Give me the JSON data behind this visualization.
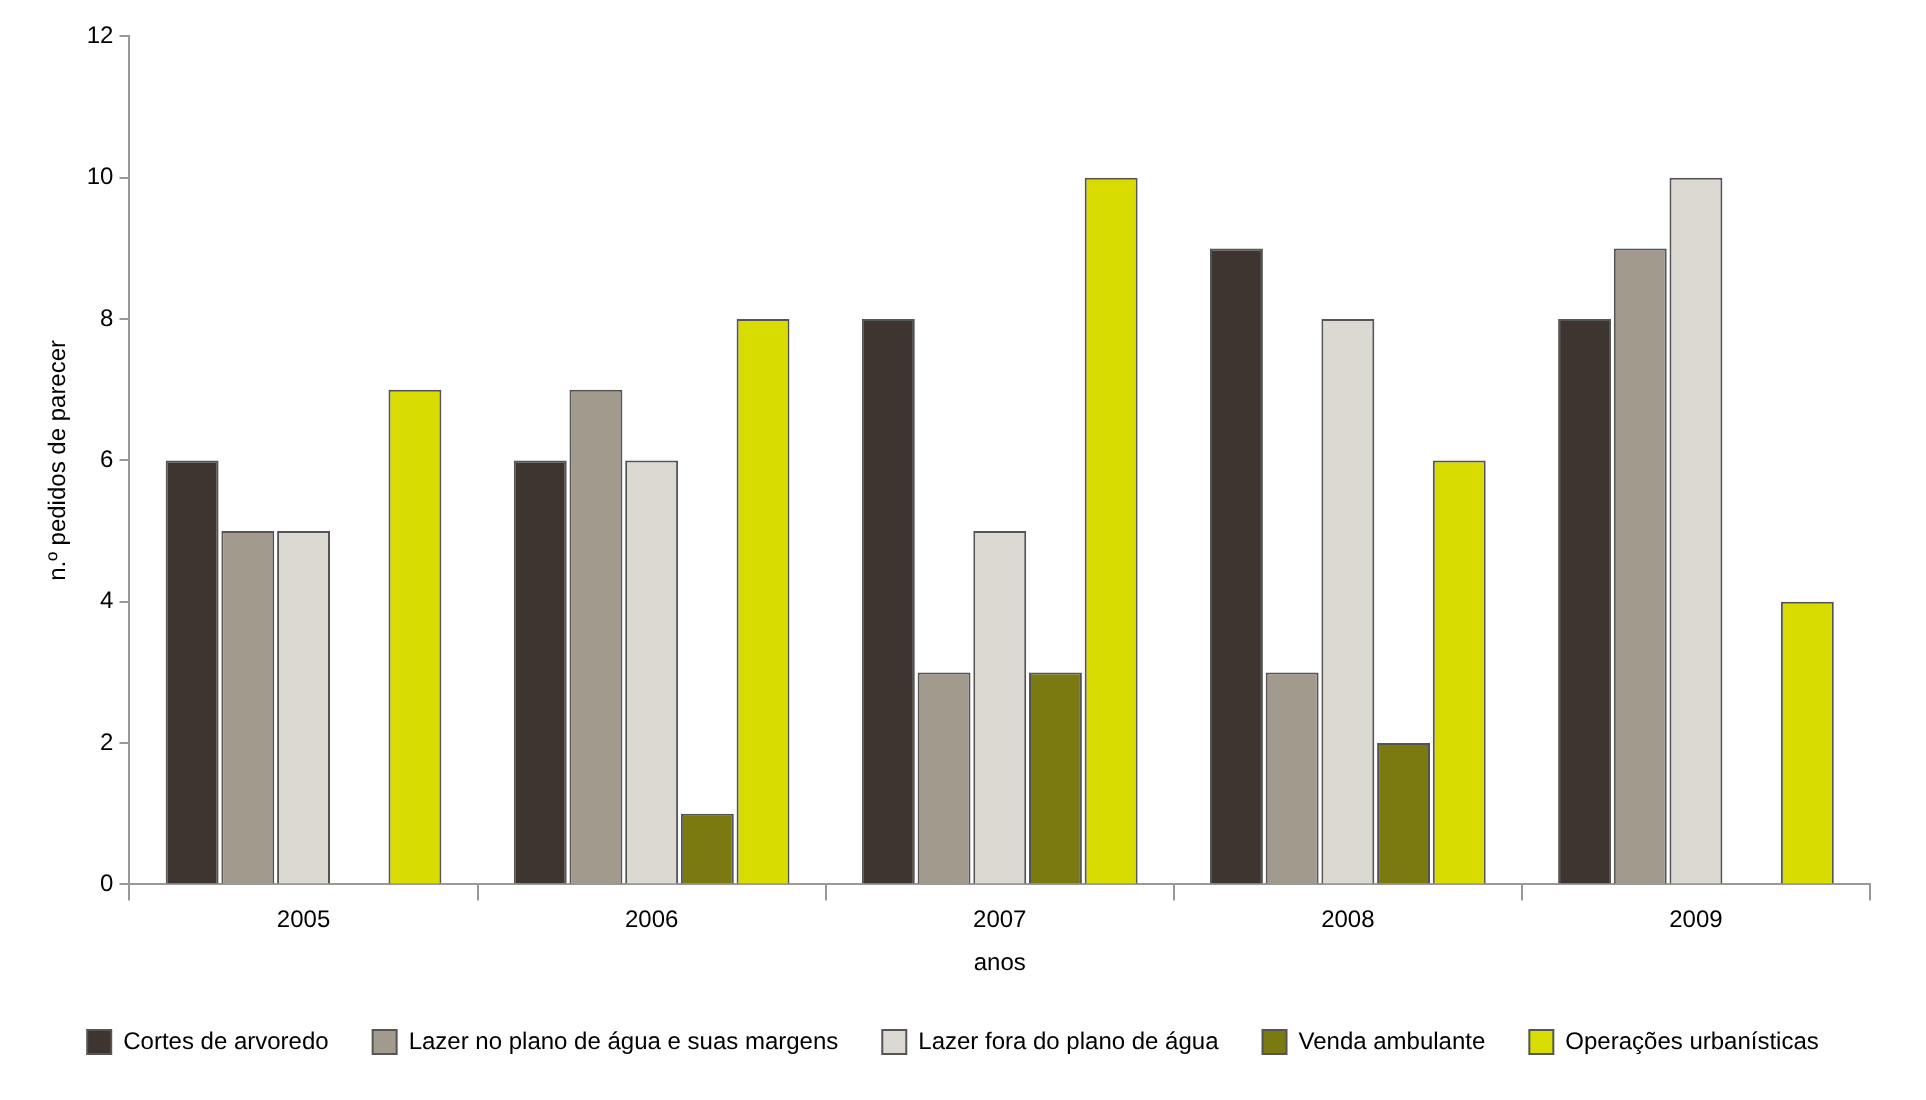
{
  "chart_data": {
    "type": "bar",
    "xlabel": "anos",
    "ylabel": "n.º pedidos de parecer",
    "categories": [
      "2005",
      "2006",
      "2007",
      "2008",
      "2009"
    ],
    "series": [
      {
        "name": "Cortes de arvoredo",
        "color": "#3e3530",
        "values": [
          6,
          6,
          8,
          9,
          8
        ]
      },
      {
        "name": "Lazer no plano de água e suas margens",
        "color": "#a39a8e",
        "values": [
          5,
          7,
          3,
          3,
          9
        ]
      },
      {
        "name": "Lazer fora do plano de água",
        "color": "#dcd8d2",
        "values": [
          5,
          6,
          5,
          8,
          10
        ]
      },
      {
        "name": "Venda ambulante",
        "color": "#7a7a10",
        "values": [
          0,
          1,
          3,
          2,
          0
        ]
      },
      {
        "name": "Operações urbanísticas",
        "color": "#d8dc00",
        "values": [
          7,
          8,
          10,
          6,
          4
        ]
      }
    ],
    "ylim": [
      0,
      12
    ],
    "yticks": [
      0,
      2,
      4,
      6,
      8,
      10,
      12
    ],
    "grid": false,
    "legend": "bottom"
  }
}
